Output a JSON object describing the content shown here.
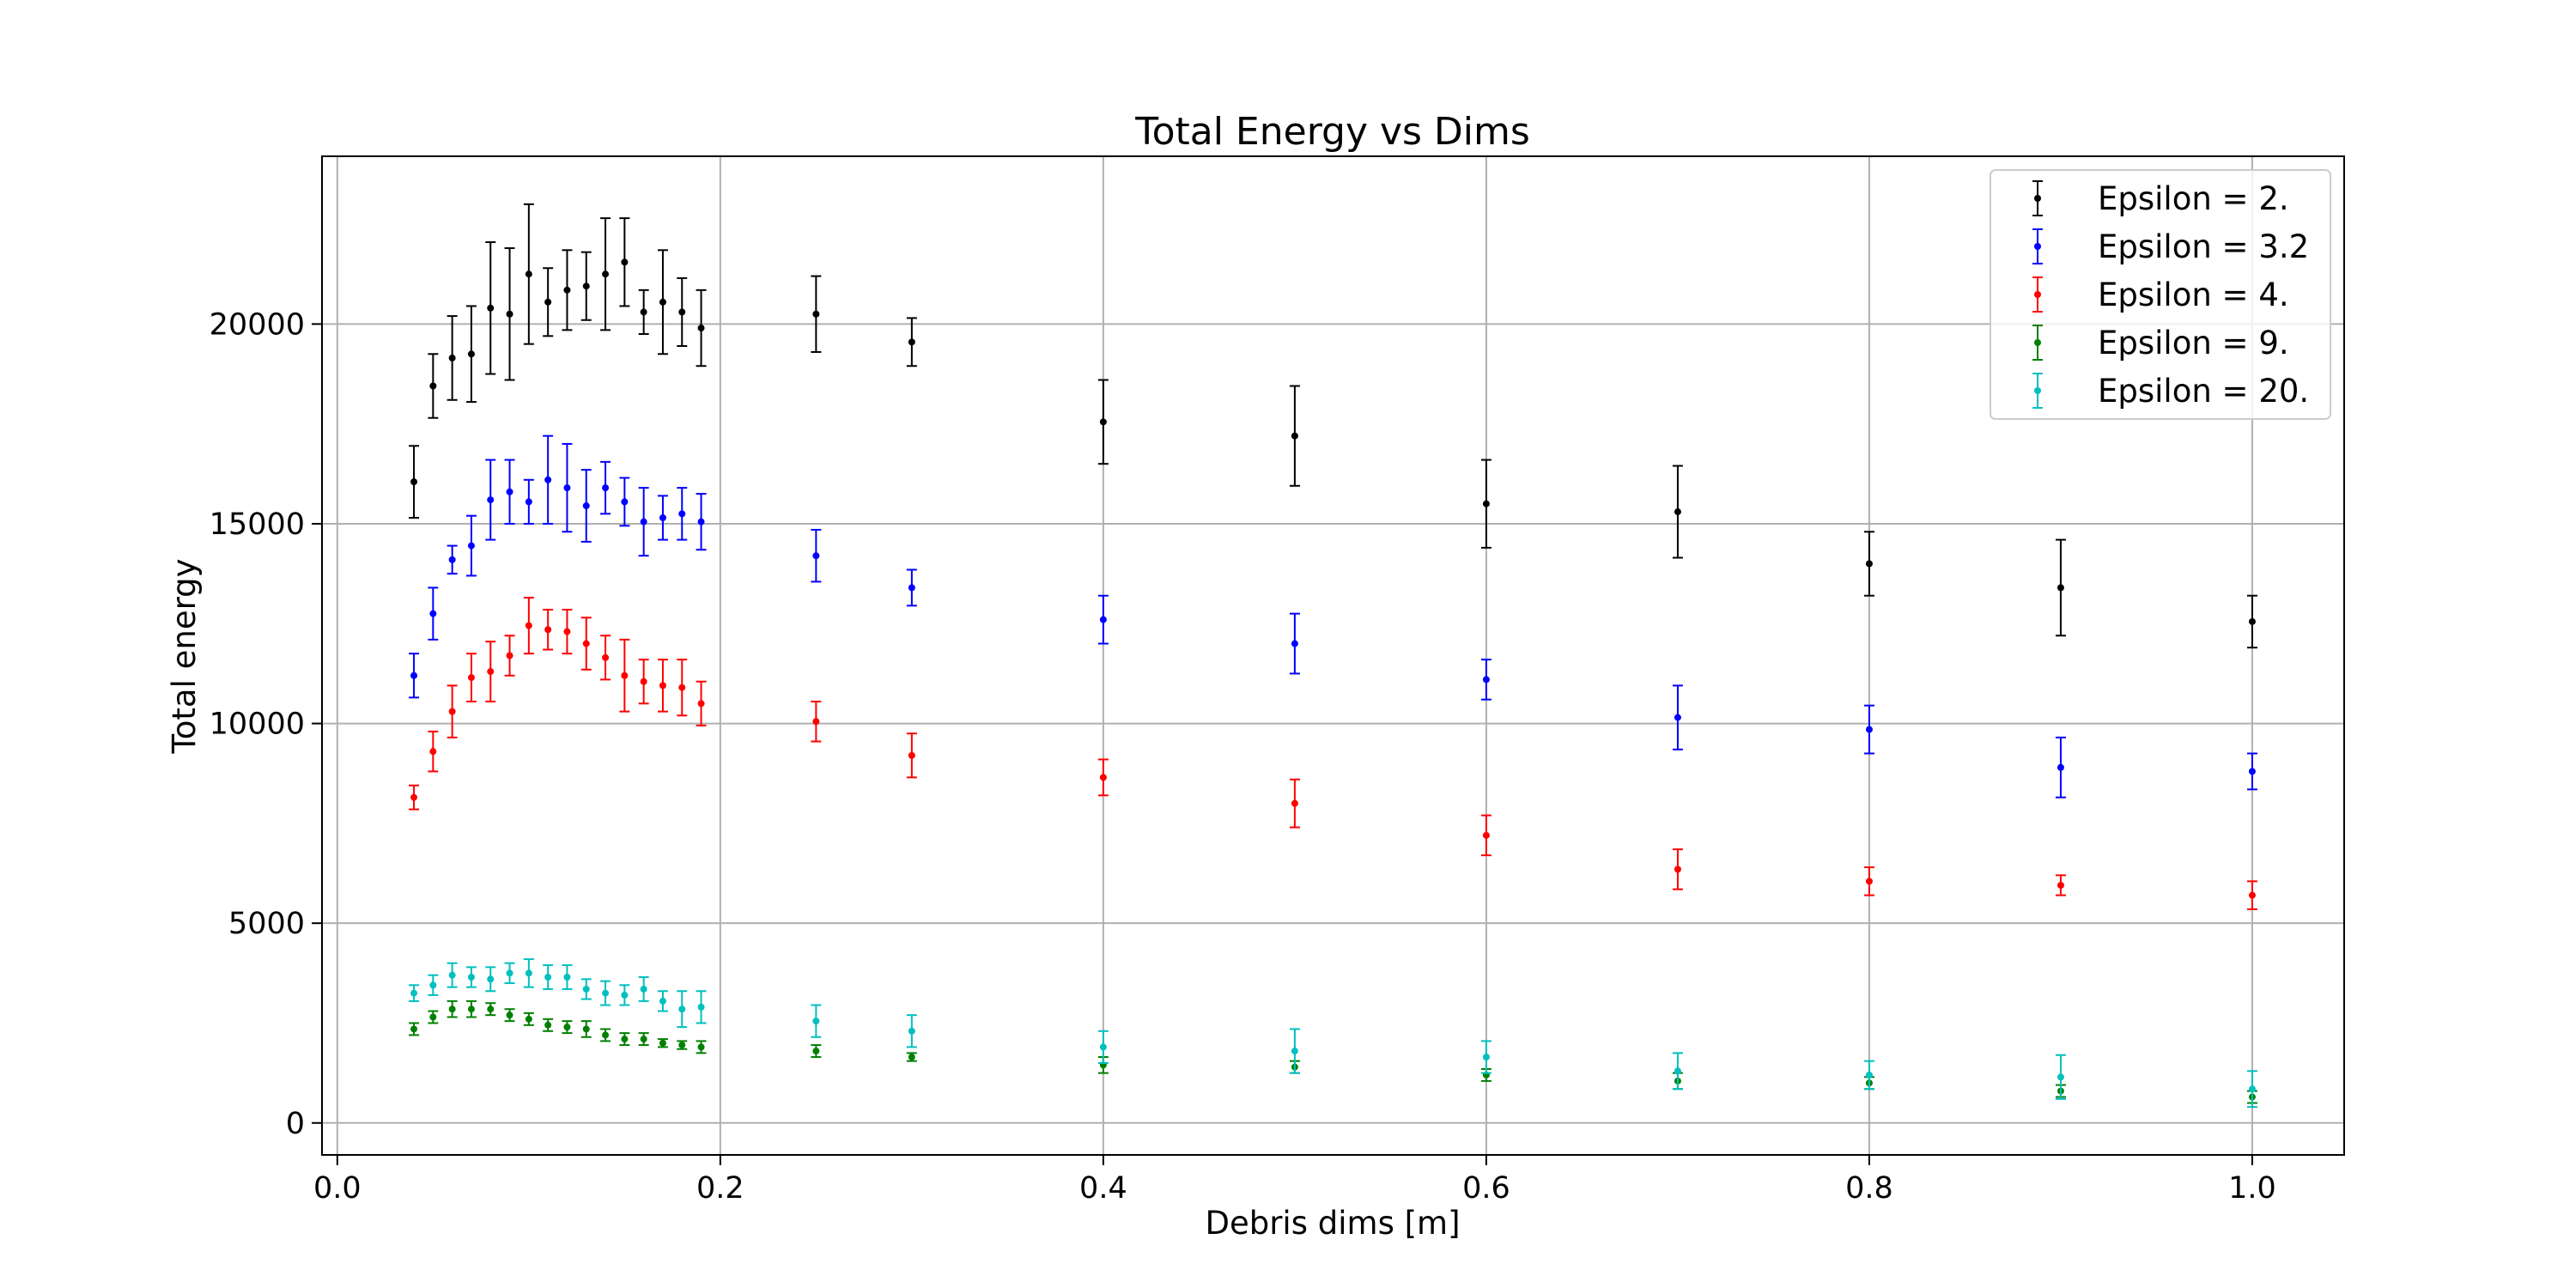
{
  "chart_data": {
    "type": "scatter",
    "title": "Total Energy vs Dims",
    "xlabel": "Debris dims [m]",
    "ylabel": "Total energy",
    "xlim": [
      -0.008,
      1.048
    ],
    "ylim": [
      -800,
      24200
    ],
    "x_ticks": [
      0.0,
      0.2,
      0.4,
      0.6,
      0.8,
      1.0
    ],
    "x_tick_labels": [
      "0.0",
      "0.2",
      "0.4",
      "0.6",
      "0.8",
      "1.0"
    ],
    "y_ticks": [
      0,
      5000,
      10000,
      15000,
      20000
    ],
    "y_tick_labels": [
      "0",
      "5000",
      "10000",
      "15000",
      "20000"
    ],
    "grid": true,
    "legend_position": "top-right",
    "x": [
      0.04,
      0.05,
      0.06,
      0.07,
      0.08,
      0.09,
      0.1,
      0.11,
      0.12,
      0.13,
      0.14,
      0.15,
      0.16,
      0.17,
      0.18,
      0.19,
      0.25,
      0.3,
      0.4,
      0.5,
      0.6,
      0.7,
      0.8,
      0.9,
      1.0
    ],
    "series": [
      {
        "name": "Epsilon = 2.",
        "color": "#000000",
        "values": [
          16050,
          18450,
          19150,
          19250,
          20400,
          20250,
          21250,
          20550,
          20850,
          20950,
          21250,
          21550,
          20300,
          20550,
          20300,
          19900,
          20250,
          19550,
          17550,
          17200,
          15500,
          15300,
          14000,
          13400,
          12550
        ],
        "errors": [
          900,
          800,
          1050,
          1200,
          1650,
          1650,
          1750,
          850,
          1000,
          850,
          1400,
          1100,
          550,
          1300,
          850,
          950,
          950,
          600,
          1050,
          1250,
          1100,
          1150,
          800,
          1200,
          650
        ]
      },
      {
        "name": "Epsilon = 3.2",
        "color": "#0000ff",
        "values": [
          11200,
          12750,
          14100,
          14450,
          15600,
          15800,
          15550,
          16100,
          15900,
          15450,
          15900,
          15550,
          15050,
          15150,
          15250,
          15050,
          14200,
          13400,
          12600,
          12000,
          11100,
          10150,
          9850,
          8900,
          8800
        ],
        "errors": [
          550,
          650,
          350,
          750,
          1000,
          800,
          550,
          1100,
          1100,
          900,
          650,
          600,
          850,
          550,
          650,
          700,
          650,
          450,
          600,
          750,
          500,
          800,
          600,
          750,
          450
        ]
      },
      {
        "name": "Epsilon = 4.",
        "color": "#ff0000",
        "values": [
          8150,
          9300,
          10300,
          11150,
          11300,
          11700,
          12450,
          12350,
          12300,
          12000,
          11650,
          11200,
          11050,
          10950,
          10900,
          10500,
          10050,
          9200,
          8650,
          8000,
          7200,
          6350,
          6050,
          5950,
          5700
        ],
        "errors": [
          300,
          500,
          650,
          600,
          750,
          500,
          700,
          500,
          550,
          650,
          550,
          900,
          550,
          650,
          700,
          550,
          500,
          550,
          450,
          600,
          500,
          500,
          350,
          250,
          350
        ]
      },
      {
        "name": "Epsilon = 9.",
        "color": "#008000",
        "values": [
          2350,
          2650,
          2850,
          2850,
          2850,
          2700,
          2600,
          2450,
          2400,
          2350,
          2200,
          2100,
          2100,
          2000,
          1950,
          1900,
          1800,
          1650,
          1450,
          1400,
          1200,
          1050,
          1000,
          800,
          650
        ],
        "errors": [
          150,
          150,
          200,
          200,
          150,
          150,
          150,
          150,
          150,
          200,
          150,
          150,
          150,
          100,
          100,
          150,
          150,
          100,
          200,
          150,
          150,
          200,
          150,
          150,
          150
        ]
      },
      {
        "name": "Epsilon = 20.",
        "color": "#00bfbf",
        "values": [
          3250,
          3450,
          3700,
          3650,
          3600,
          3750,
          3750,
          3650,
          3650,
          3350,
          3250,
          3200,
          3350,
          3050,
          2850,
          2900,
          2550,
          2300,
          1900,
          1800,
          1650,
          1300,
          1200,
          1150,
          850
        ],
        "errors": [
          200,
          250,
          300,
          250,
          300,
          250,
          350,
          300,
          300,
          250,
          300,
          250,
          300,
          250,
          450,
          400,
          400,
          400,
          400,
          550,
          400,
          450,
          350,
          550,
          450
        ]
      }
    ]
  }
}
